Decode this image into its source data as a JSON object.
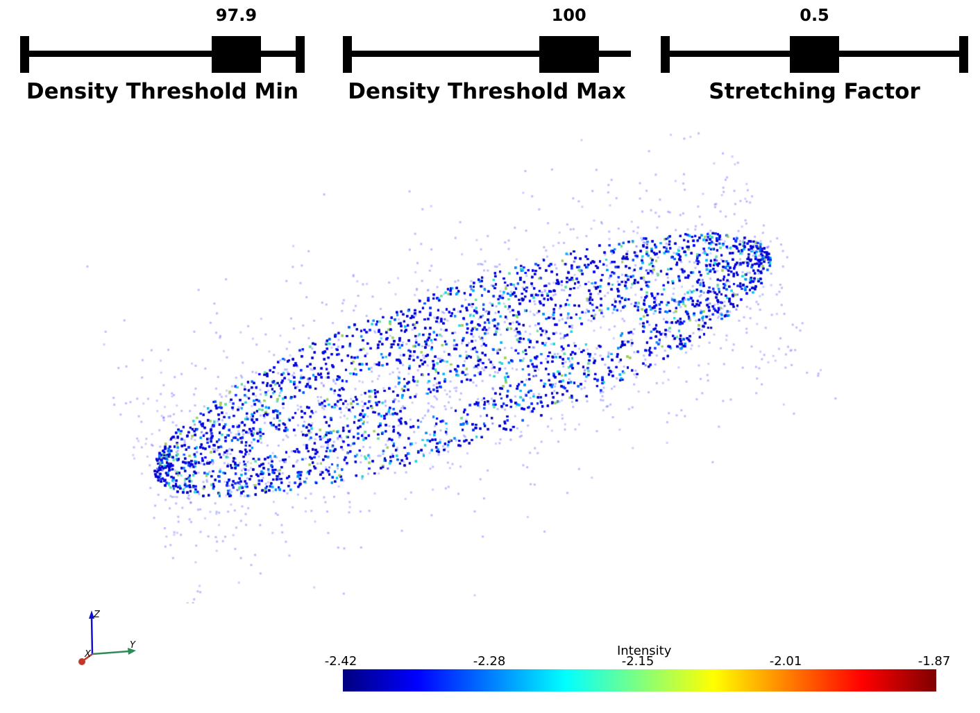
{
  "sliders": [
    {
      "title": "Density Threshold Min",
      "value_label": "97.9",
      "position": 0.84
    },
    {
      "title": "Density Threshold Max",
      "value_label": "100",
      "position": 0.89
    },
    {
      "title": "Stretching Factor",
      "value_label": "0.5",
      "position": 0.5
    }
  ],
  "orientation_axes": {
    "x_label": "X",
    "y_label": "Y",
    "z_label": "Z",
    "colors": {
      "x": "#c0392b",
      "y": "#2e8b57",
      "z": "#1010d0"
    }
  },
  "colorbar": {
    "title": "Intensity",
    "ticks": [
      "-2.42",
      "-2.28",
      "-2.15",
      "-2.01",
      "-1.87"
    ],
    "colormap": [
      "#00007f",
      "#0000ff",
      "#007fff",
      "#00ffff",
      "#7fff7f",
      "#ffff00",
      "#ff7f00",
      "#ff0000",
      "#7f0000"
    ]
  }
}
